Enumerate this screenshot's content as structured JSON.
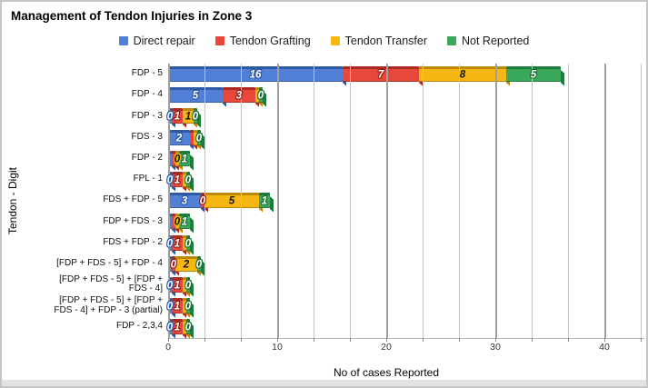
{
  "title": "Management of Tendon Injuries in Zone 3",
  "legend": [
    {
      "label": "Direct repair",
      "color": "#5280d6"
    },
    {
      "label": "Tendon Grafting",
      "color": "#e8473c"
    },
    {
      "label": "Tendon Transfer",
      "color": "#f6b713"
    },
    {
      "label": "Not Reported",
      "color": "#3aa85b"
    }
  ],
  "axes": {
    "x_title": "No of cases Reported",
    "y_title": "Tendon - Digit"
  },
  "series_styles": [
    {
      "name": "Direct repair",
      "face": "#5280d6",
      "dark": "#2e5aa5",
      "text": "#ffffff",
      "outline": "#2e5aa5"
    },
    {
      "name": "Tendon Grafting",
      "face": "#e8473c",
      "dark": "#aa2a20",
      "text": "#ffffff",
      "outline": "#8f1f15"
    },
    {
      "name": "Tendon Transfer",
      "face": "#f6b713",
      "dark": "#bb8a05",
      "text": "#141414",
      "outline": "#f6b713"
    },
    {
      "name": "Not Reported",
      "face": "#3aa85b",
      "dark": "#1f7a3d",
      "text": "#ffffff",
      "outline": "#1d6b35"
    }
  ],
  "chart_data": {
    "type": "bar",
    "orientation": "horizontal",
    "stacked": true,
    "title": "Management of Tendon Injuries in Zone 3",
    "xlabel": "No of cases Reported",
    "ylabel": "Tendon - Digit",
    "xlim": [
      0,
      40
    ],
    "x_ticks": [
      0,
      10,
      20,
      30,
      40
    ],
    "minor_gridline_step": 3.33,
    "grid": true,
    "legend_position": "top",
    "data_labels": true,
    "series": [
      "Direct repair",
      "Tendon Grafting",
      "Tendon Transfer",
      "Not Reported"
    ],
    "categories": [
      "FDP - 5",
      "FDP - 4",
      "FDP - 3",
      "FDS - 3",
      "FDP - 2",
      "FPL - 1",
      "FDS + FDP - 5",
      "FDP + FDS - 3",
      "FDS + FDP - 2",
      "[FDP + FDS - 5] + FDP - 4",
      "[FDP + FDS - 5] + [FDP + FDS - 4]",
      "[FDP + FDS - 5] + [FDP + FDS - 4] + FDP - 3 (partial)",
      "FDP - 2,3,4"
    ],
    "rows": [
      {
        "label": "FDP - 5",
        "display_label": "FDP - 5",
        "values": [
          16,
          7,
          8,
          5
        ]
      },
      {
        "label": "FDP - 4",
        "display_label": "FDP - 4",
        "values": [
          5,
          3,
          0,
          0
        ]
      },
      {
        "label": "FDP - 3",
        "display_label": "FDP - 3",
        "values": [
          0,
          1,
          1,
          0
        ]
      },
      {
        "label": "FDS - 3",
        "display_label": "FDS - 3",
        "values": [
          2,
          0,
          0,
          0
        ]
      },
      {
        "label": "FDP - 2",
        "display_label": "FDP - 2",
        "values": [
          0,
          0,
          0,
          1
        ]
      },
      {
        "label": "FPL - 1",
        "display_label": "FPL - 1",
        "values": [
          0,
          1,
          0,
          0
        ]
      },
      {
        "label": "FDS + FDP - 5",
        "display_label": "FDS + FDP - 5",
        "values": [
          3,
          0,
          5,
          1
        ]
      },
      {
        "label": "FDP + FDS - 3",
        "display_label": "FDP + FDS - 3",
        "values": [
          0,
          0,
          0,
          1
        ]
      },
      {
        "label": "FDS + FDP - 2",
        "display_label": "FDS + FDP - 2",
        "values": [
          0,
          1,
          0,
          0
        ]
      },
      {
        "label": "[FDP + FDS - 5] + FDP - 4",
        "display_label": "[FDP + FDS - 5] + FDP - 4",
        "values": [
          0,
          0,
          2,
          0
        ]
      },
      {
        "label": "[FDP + FDS - 5] + [FDP + FDS - 4]",
        "display_label": "[FDP + FDS - 5] + [FDP +\nFDS - 4]",
        "values": [
          0,
          1,
          0,
          0
        ]
      },
      {
        "label": "[FDP + FDS - 5] + [FDP + FDS - 4] + FDP - 3 (partial)",
        "display_label": "[FDP + FDS - 5] + [FDP +\nFDS - 4] + FDP - 3 (partial)",
        "values": [
          0,
          1,
          0,
          0
        ]
      },
      {
        "label": "FDP - 2,3,4",
        "display_label": "FDP - 2,3,4",
        "values": [
          0,
          1,
          0,
          0
        ]
      }
    ]
  }
}
